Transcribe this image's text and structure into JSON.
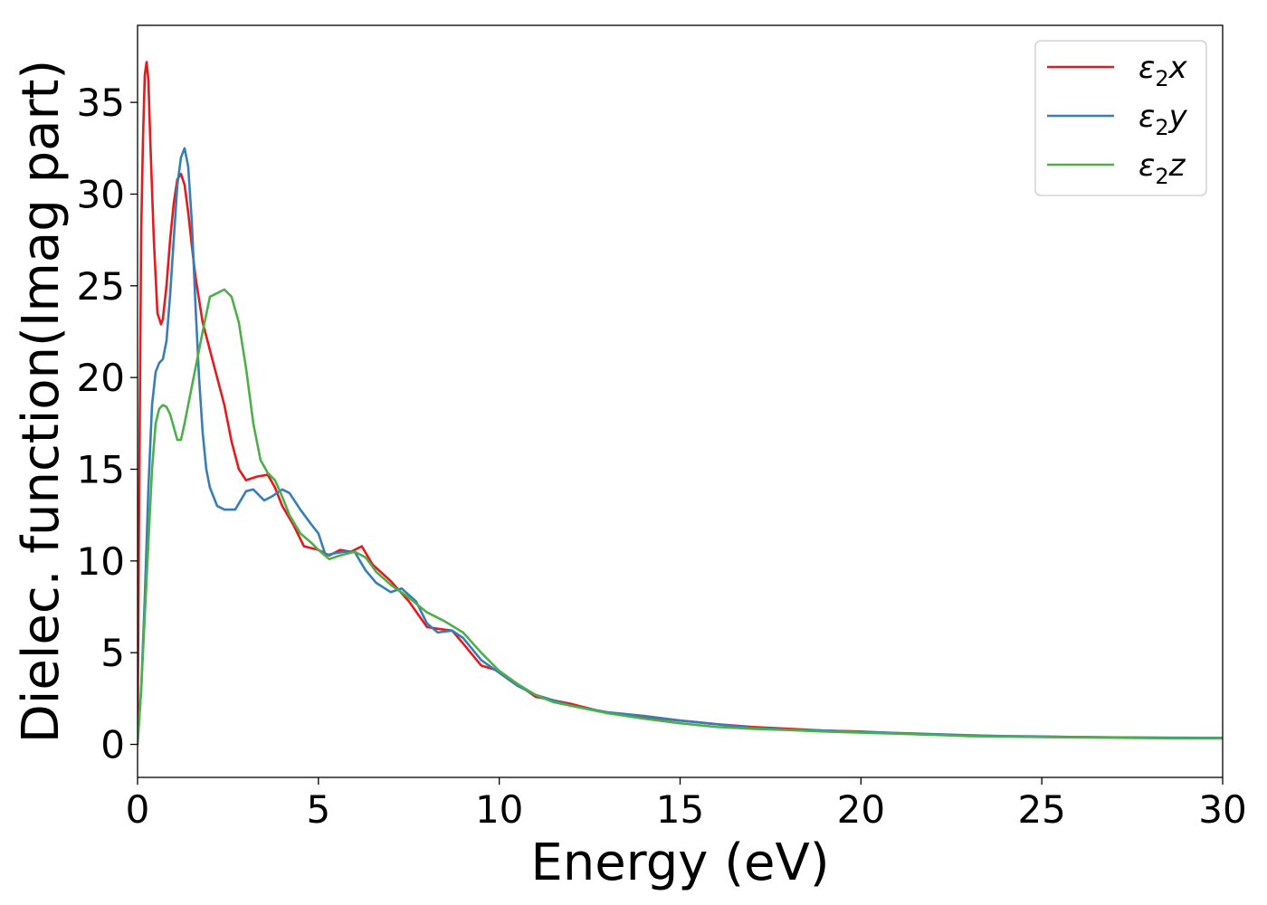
{
  "chart_data": {
    "type": "line",
    "title": "",
    "xlabel": "Energy (eV)",
    "ylabel": "Dielec. function(Imag part)",
    "xlim": [
      0,
      30
    ],
    "ylim": [
      -1.8,
      39.2
    ],
    "xticks": [
      0,
      5,
      10,
      15,
      20,
      25,
      30
    ],
    "yticks": [
      0,
      5,
      10,
      15,
      20,
      25,
      30,
      35
    ],
    "grid": false,
    "legend_position": "top-right",
    "series": [
      {
        "name": "ε2x",
        "legend_main": "ε",
        "legend_sub": "2",
        "legend_tail": "x",
        "color": "#e41a1c",
        "x": [
          0,
          0.05,
          0.1,
          0.15,
          0.2,
          0.25,
          0.3,
          0.35,
          0.45,
          0.55,
          0.65,
          0.7,
          0.8,
          0.9,
          1.0,
          1.1,
          1.2,
          1.3,
          1.4,
          1.5,
          1.6,
          1.8,
          2.0,
          2.2,
          2.4,
          2.6,
          2.8,
          3.0,
          3.3,
          3.6,
          3.8,
          4.0,
          4.3,
          4.6,
          5.0,
          5.3,
          5.6,
          5.9,
          6.2,
          6.5,
          7.0,
          7.5,
          8.0,
          8.3,
          8.7,
          9.0,
          9.5,
          10.0,
          10.5,
          11.0,
          11.5,
          12.0,
          13.0,
          14.0,
          15.0,
          16.0,
          17.0,
          18.0,
          19.0,
          20.0,
          21.0,
          22.0,
          23.0,
          24.0,
          25.0,
          26.0,
          27.0,
          28.0,
          29.0,
          30.0
        ],
        "y": [
          0,
          15,
          28,
          33,
          36.5,
          37.2,
          36.2,
          33,
          27.5,
          23.5,
          22.9,
          23.2,
          25,
          27.5,
          29.5,
          30.8,
          31.1,
          30.5,
          29,
          27.2,
          25.5,
          23,
          21.5,
          20,
          18.5,
          16.5,
          15,
          14.4,
          14.6,
          14.7,
          14,
          13,
          12,
          10.8,
          10.6,
          10.3,
          10.6,
          10.5,
          10.8,
          9.8,
          8.9,
          7.8,
          6.4,
          6.3,
          6.2,
          5.5,
          4.3,
          4.0,
          3.3,
          2.6,
          2.4,
          2.2,
          1.7,
          1.5,
          1.3,
          1.1,
          0.95,
          0.85,
          0.75,
          0.7,
          0.6,
          0.55,
          0.48,
          0.44,
          0.42,
          0.4,
          0.38,
          0.36,
          0.35,
          0.35
        ]
      },
      {
        "name": "ε2y",
        "legend_main": "ε",
        "legend_sub": "2",
        "legend_tail": "y",
        "color": "#377eb8",
        "x": [
          0,
          0.1,
          0.2,
          0.3,
          0.4,
          0.5,
          0.6,
          0.7,
          0.8,
          0.9,
          1.0,
          1.1,
          1.2,
          1.3,
          1.4,
          1.5,
          1.6,
          1.7,
          1.8,
          1.9,
          2.0,
          2.2,
          2.4,
          2.7,
          3.0,
          3.2,
          3.5,
          3.7,
          4.0,
          4.2,
          4.5,
          4.8,
          5.0,
          5.2,
          5.4,
          5.7,
          6.0,
          6.3,
          6.6,
          7.0,
          7.3,
          7.7,
          8.0,
          8.3,
          8.7,
          9.0,
          9.5,
          10.0,
          10.5,
          11.0,
          11.5,
          12.0,
          13.0,
          14.0,
          15.0,
          16.0,
          17.0,
          18.0,
          19.0,
          20.0,
          21.0,
          22.0,
          23.0,
          24.0,
          25.0,
          26.0,
          27.0,
          28.0,
          29.0,
          30.0
        ],
        "y": [
          0,
          3,
          8,
          14,
          18.5,
          20.3,
          20.8,
          21,
          22,
          24.5,
          27.5,
          30.5,
          32,
          32.5,
          31.5,
          28.5,
          24,
          20,
          17,
          15,
          14,
          13,
          12.8,
          12.8,
          13.8,
          13.9,
          13.3,
          13.5,
          13.9,
          13.7,
          12.8,
          12,
          11.5,
          10.3,
          10.4,
          10.5,
          10.5,
          9.5,
          8.8,
          8.3,
          8.5,
          7.8,
          6.6,
          6.1,
          6.2,
          5.8,
          4.6,
          3.9,
          3.2,
          2.7,
          2.4,
          2.1,
          1.75,
          1.55,
          1.3,
          1.1,
          0.9,
          0.8,
          0.75,
          0.68,
          0.62,
          0.56,
          0.5,
          0.45,
          0.43,
          0.4,
          0.38,
          0.37,
          0.36,
          0.35
        ]
      },
      {
        "name": "ε2z",
        "legend_main": "ε",
        "legend_sub": "2",
        "legend_tail": "z",
        "color": "#4daf4a",
        "x": [
          0,
          0.1,
          0.2,
          0.3,
          0.4,
          0.5,
          0.6,
          0.7,
          0.8,
          0.9,
          1.0,
          1.1,
          1.2,
          1.3,
          1.4,
          1.6,
          1.8,
          2.0,
          2.2,
          2.4,
          2.6,
          2.8,
          3.0,
          3.2,
          3.4,
          3.6,
          3.8,
          4.0,
          4.2,
          4.5,
          4.8,
          5.0,
          5.3,
          5.6,
          6.0,
          6.3,
          6.6,
          7.0,
          7.5,
          8.0,
          8.5,
          9.0,
          9.5,
          10.0,
          10.5,
          11.0,
          11.5,
          12.0,
          13.0,
          14.0,
          15.0,
          16.0,
          17.0,
          18.0,
          19.0,
          20.0,
          21.0,
          22.0,
          23.0,
          24.0,
          25.0,
          26.0,
          27.0,
          28.0,
          29.0,
          30.0
        ],
        "y": [
          0,
          3,
          7,
          11,
          15,
          17.5,
          18.3,
          18.5,
          18.4,
          18,
          17.3,
          16.6,
          16.6,
          17.5,
          18.5,
          20.5,
          22.5,
          24.4,
          24.6,
          24.8,
          24.4,
          23,
          20.5,
          17.5,
          15.5,
          14.8,
          14.4,
          13.5,
          12.5,
          11.5,
          11,
          10.6,
          10.1,
          10.3,
          10.5,
          10.2,
          9.4,
          8.7,
          8.0,
          7.2,
          6.7,
          6.1,
          5.0,
          4.0,
          3.3,
          2.7,
          2.3,
          2.1,
          1.7,
          1.4,
          1.15,
          0.95,
          0.85,
          0.78,
          0.7,
          0.64,
          0.58,
          0.52,
          0.45,
          0.42,
          0.4,
          0.38,
          0.36,
          0.34,
          0.33,
          0.33
        ]
      }
    ]
  }
}
